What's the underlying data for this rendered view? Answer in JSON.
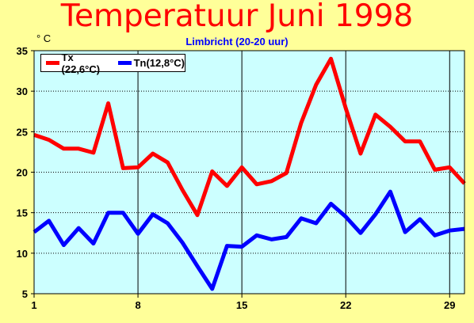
{
  "chart_data": {
    "type": "line",
    "title": "Temperatuur Juni 1998",
    "subtitle": "Limbricht (20-20 uur)",
    "ylabel": "° C",
    "xlabel": "",
    "xlim": [
      1,
      30
    ],
    "ylim": [
      5,
      35
    ],
    "xticks": [
      "1",
      "8",
      "15",
      "22",
      "29"
    ],
    "yticks": [
      "5",
      "10",
      "15",
      "20",
      "25",
      "30",
      "35"
    ],
    "grid": true,
    "legend_position": "top-left",
    "x": [
      1,
      2,
      3,
      4,
      5,
      6,
      7,
      8,
      9,
      10,
      11,
      12,
      13,
      14,
      15,
      16,
      17,
      18,
      19,
      20,
      21,
      22,
      23,
      24,
      25,
      26,
      27,
      28,
      29,
      30
    ],
    "series": [
      {
        "name": "Tx (22,6°C)",
        "color": "#ff0000",
        "values": [
          24.6,
          24.0,
          22.9,
          22.9,
          22.4,
          28.5,
          20.5,
          20.6,
          22.3,
          21.2,
          17.8,
          14.7,
          20.1,
          18.3,
          20.6,
          18.5,
          18.9,
          19.9,
          26.1,
          30.8,
          34.0,
          27.9,
          22.3,
          27.1,
          25.6,
          23.8,
          23.8,
          20.3,
          20.6,
          18.6
        ]
      },
      {
        "name": "Tn(12,8°C)",
        "color": "#0000ff",
        "values": [
          12.6,
          14.0,
          11.0,
          13.1,
          11.2,
          15.0,
          15.0,
          12.4,
          14.8,
          13.7,
          11.3,
          8.4,
          5.6,
          10.9,
          10.8,
          12.2,
          11.7,
          12.0,
          14.3,
          13.7,
          16.1,
          14.5,
          12.5,
          14.8,
          17.6,
          12.6,
          14.2,
          12.2,
          12.8,
          13.0
        ]
      }
    ]
  }
}
